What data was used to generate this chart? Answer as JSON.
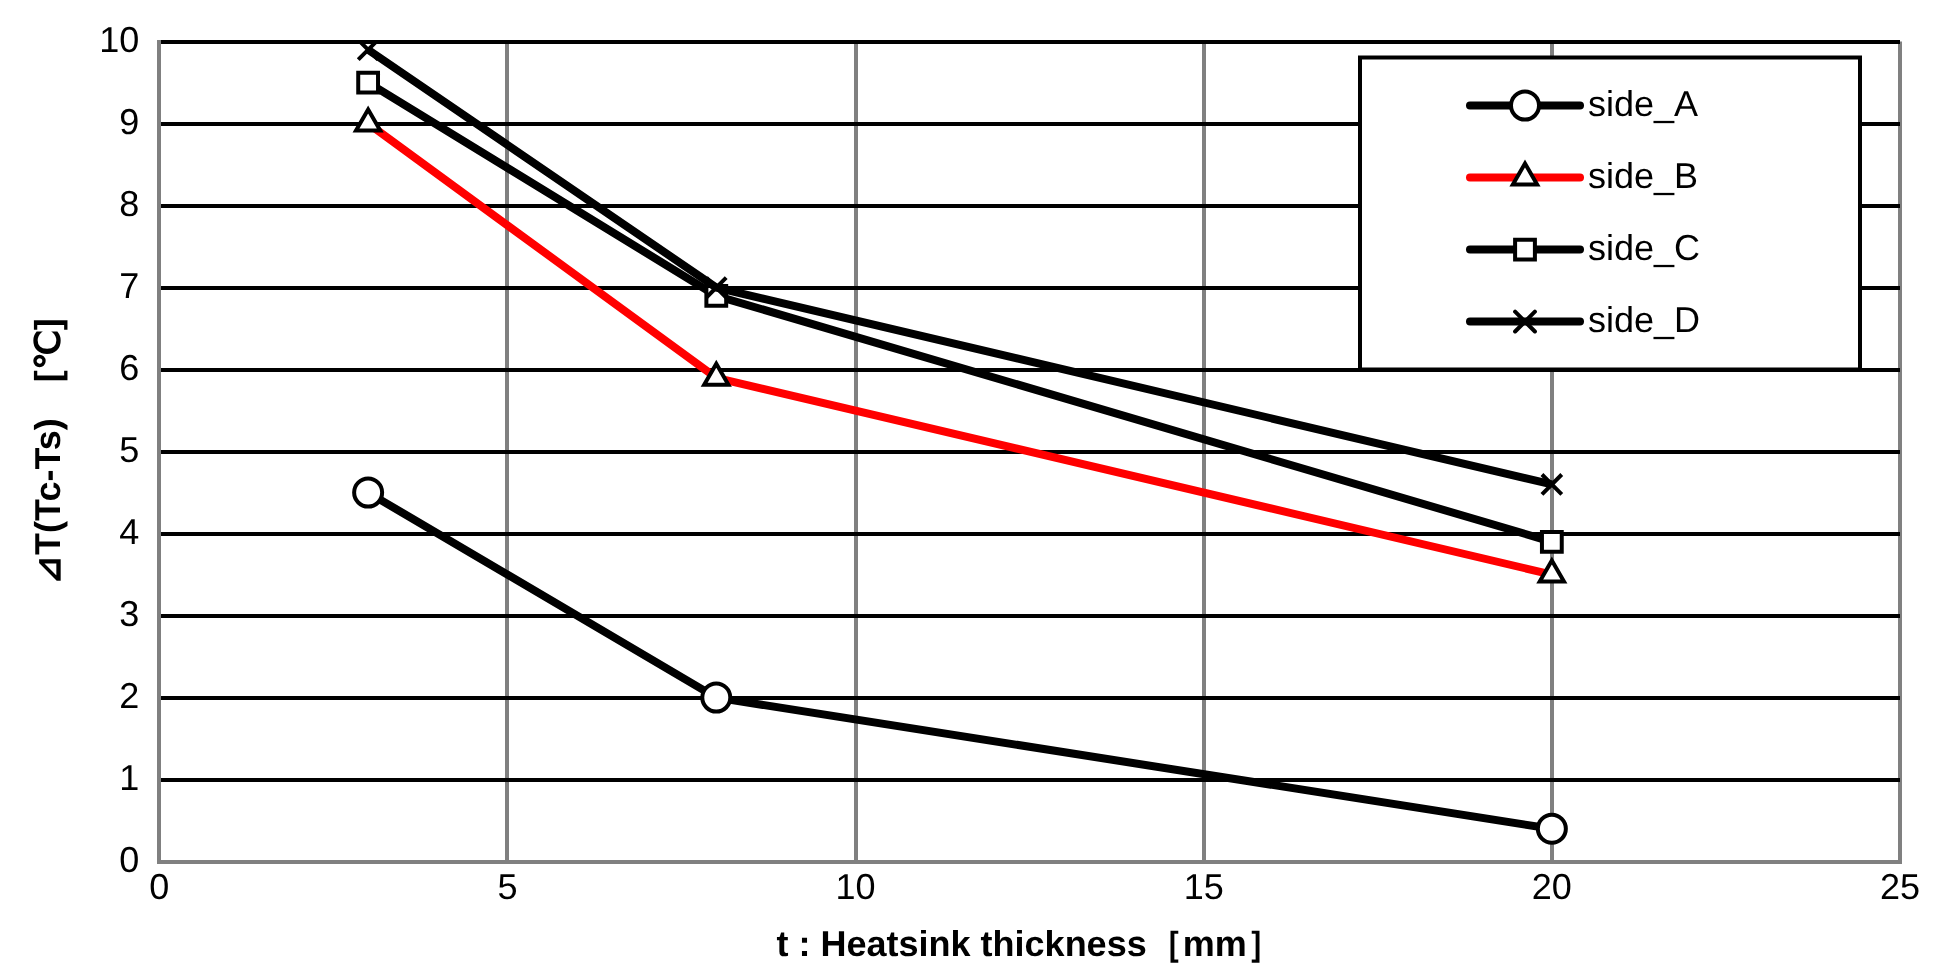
{
  "chart_data": {
    "type": "line",
    "xlabel": "t : Heatsink thickness［mm］",
    "ylabel": "⊿T(Tc-Ts)　[℃]",
    "xlim": [
      0,
      25
    ],
    "xticks": [
      0,
      5,
      10,
      15,
      20,
      25
    ],
    "ylim": [
      0,
      10
    ],
    "yticks": [
      0,
      1,
      2,
      3,
      4,
      5,
      6,
      7,
      8,
      9,
      10
    ],
    "grid": true,
    "legend": "top right",
    "line_style": "solid",
    "series": [
      {
        "name": "side_A",
        "color": "#000000",
        "marker": "circle",
        "x": [
          3,
          8,
          20
        ],
        "values": [
          4.5,
          2,
          0.4
        ]
      },
      {
        "name": "side_B",
        "color": "#ff0000",
        "marker": "triangle",
        "x": [
          3,
          8,
          20
        ],
        "values": [
          9,
          5.9,
          3.5
        ]
      },
      {
        "name": "side_C",
        "color": "#000000",
        "marker": "square",
        "x": [
          3,
          8,
          20
        ],
        "values": [
          9.5,
          6.9,
          3.9
        ]
      },
      {
        "name": "side_D",
        "color": "#000000",
        "marker": "cross",
        "x": [
          3,
          8,
          20
        ],
        "values": [
          9.9,
          7,
          4.6
        ]
      }
    ]
  }
}
